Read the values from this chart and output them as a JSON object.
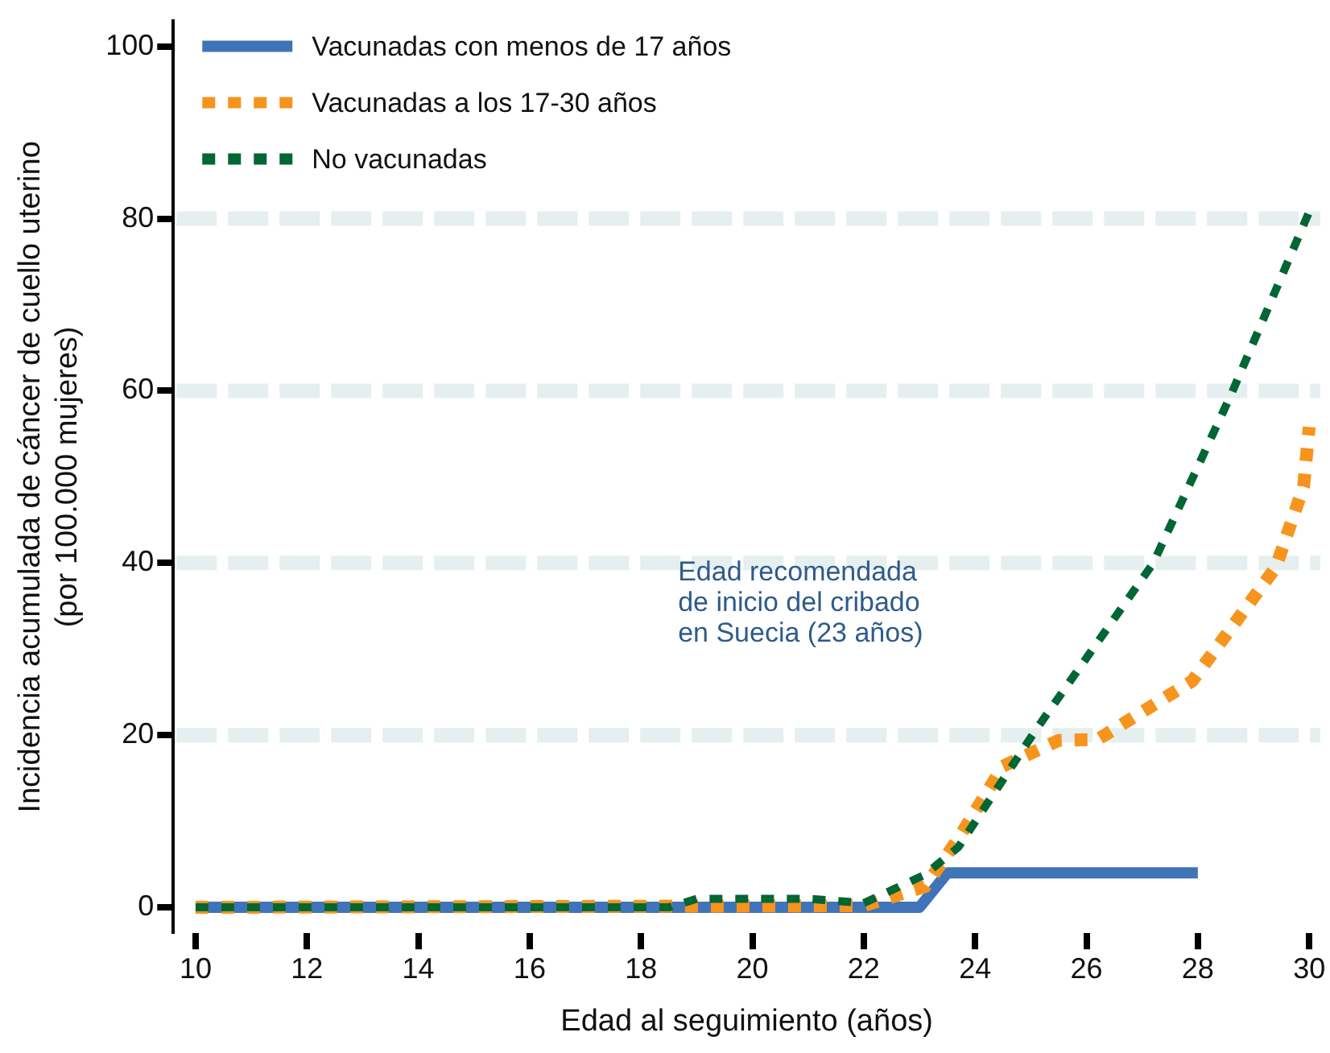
{
  "chart_data": {
    "type": "line",
    "xlabel": "Edad al seguimiento (años)",
    "ylabel": "Incidencia acumulada de cáncer de cuello uterino\n(por 100.000 mujeres)",
    "xlim": [
      9.6,
      30.2
    ],
    "xticks": [
      10,
      12,
      14,
      16,
      18,
      20,
      22,
      24,
      26,
      28,
      30
    ],
    "ylim": [
      -3,
      103
    ],
    "yticks": [
      0,
      20,
      40,
      60,
      80,
      100
    ],
    "grid": "y",
    "legend": "top left",
    "annotations": [
      "Edad recomendada\nde inicio del cribado\nen Suecia (23 años)"
    ],
    "series": [
      {
        "name": "Vacunadas con menos de 17 años",
        "color": "#3f74b9",
        "line_style": "solid",
        "x": [
          10,
          23,
          23.5,
          28
        ],
        "values": [
          0,
          0,
          4,
          4
        ]
      },
      {
        "name": "Vacunadas a los 17-30 años",
        "color": "#f7941d",
        "line_style": "dotted",
        "x": [
          10,
          22,
          23.1,
          23.7,
          24.5,
          25.5,
          26.2,
          27.9,
          29.4,
          29.9,
          30
        ],
        "values": [
          0,
          0.2,
          2.4,
          8,
          16.4,
          19.4,
          19.5,
          26.3,
          39.5,
          48.9,
          55.8
        ]
      },
      {
        "name": "No vacunadas",
        "color": "#006634",
        "line_style": "dotted",
        "x": [
          10,
          18.5,
          19,
          21,
          22,
          23.1,
          23.7,
          25.1,
          27.2,
          28.6,
          30
        ],
        "values": [
          0,
          0,
          1,
          1,
          0.5,
          3.8,
          7,
          20.7,
          40,
          59.6,
          80.8
        ]
      }
    ]
  }
}
